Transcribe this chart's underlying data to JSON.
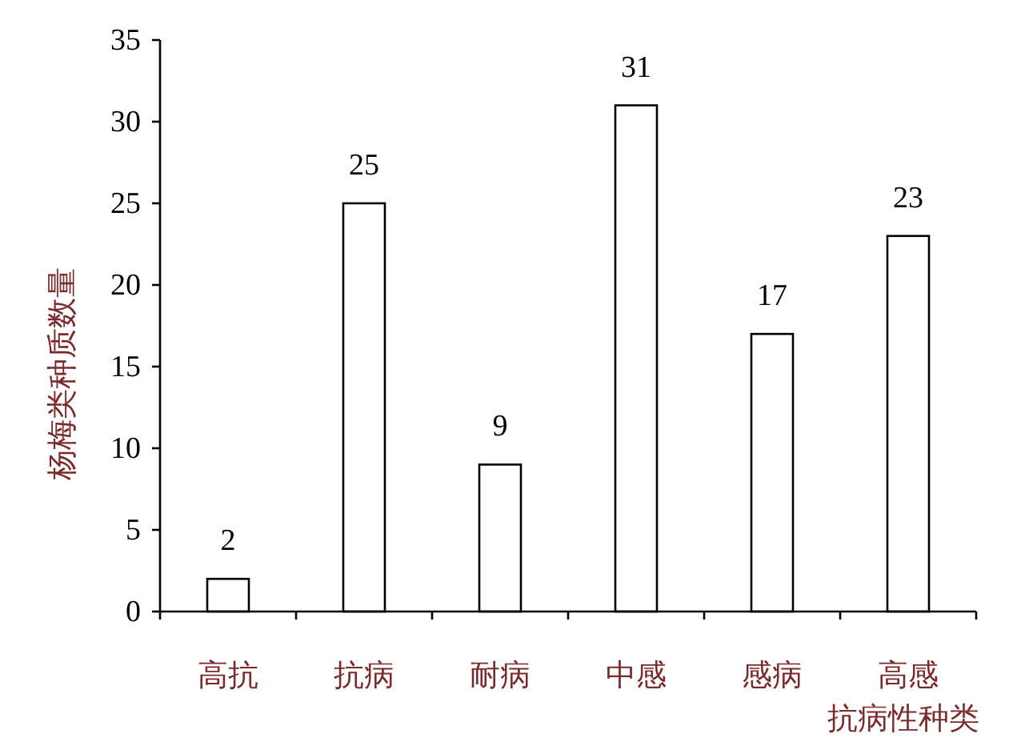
{
  "chart_data": {
    "type": "bar",
    "xlabel": "抗病性种类",
    "ylabel": "杨梅类种质数量",
    "categories": [
      "高抗",
      "抗病",
      "耐病",
      "中感",
      "感病",
      "高感"
    ],
    "values": [
      2,
      25,
      9,
      31,
      17,
      23
    ],
    "color": "#ffffff",
    "ylim": [
      0,
      35
    ],
    "yticks": [
      0,
      5,
      10,
      15,
      20,
      25,
      30,
      35
    ],
    "data_labels": true,
    "grid": false
  }
}
